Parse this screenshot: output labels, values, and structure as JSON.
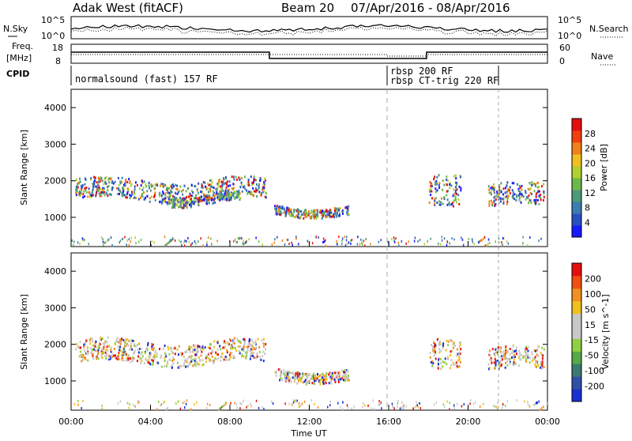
{
  "header": {
    "station": "Adak West (fitACF)",
    "beam": "Beam 20",
    "date_range": "07/Apr/2016 - 08/Apr/2016"
  },
  "top_panels": {
    "nsky_label": "N.Sky",
    "nsearch_label": "N.Search",
    "nsky_left_ticks": [
      "10^5",
      "10^0"
    ],
    "nsky_right_ticks": [
      "10^5",
      "10^0"
    ],
    "freq_label_line1": "Freq.",
    "freq_label_line2": "[MHz]",
    "freq_ticks": [
      "18",
      "8"
    ],
    "nave_label": "Nave",
    "nave_ticks": [
      "60",
      "0"
    ],
    "cpid_label": "CPID",
    "cpid_segments": [
      {
        "text": "normalsound (fast) 157 RF"
      },
      {
        "text": "rbsp 200 RF"
      },
      {
        "text": "rbsp CT-trig 220 RF"
      }
    ]
  },
  "chart_data": [
    {
      "type": "heatmap",
      "quantity": "power",
      "ylabel": "Slant Range [km]",
      "ylim": [
        200,
        4500
      ],
      "yticks": [
        1000,
        2000,
        3000,
        4000
      ],
      "xlim": [
        0,
        24
      ],
      "colorbar_label": "Power [dB]",
      "colorbar_ticks": [
        "4",
        "8",
        "12",
        "16",
        "20",
        "24",
        "28"
      ],
      "colorbar_colors": [
        "#1a1aff",
        "#2a4fc0",
        "#3a7db0",
        "#4c9a7a",
        "#6bb84a",
        "#b0d030",
        "#f0c020",
        "#f08018",
        "#f04010",
        "#e41010"
      ],
      "scatter_bands": [
        {
          "t_start": 0.2,
          "t_end": 9.8,
          "range_start": 1500,
          "range_end": 2050
        },
        {
          "t_start": 5.0,
          "t_end": 8.5,
          "range_start": 1400,
          "range_end": 1650
        },
        {
          "t_start": 10.2,
          "t_end": 14.0,
          "range_start": 1100,
          "range_end": 1350
        },
        {
          "t_start": 18.0,
          "t_end": 19.6,
          "range_start": 1450,
          "range_end": 2300
        },
        {
          "t_start": 21.0,
          "t_end": 23.8,
          "range_start": 1300,
          "range_end": 1900
        }
      ]
    },
    {
      "type": "heatmap",
      "quantity": "velocity",
      "ylabel": "Slant Range [km]",
      "xlabel": "Time UT",
      "ylim": [
        200,
        4500
      ],
      "yticks": [
        1000,
        2000,
        3000,
        4000
      ],
      "xlim": [
        0,
        24
      ],
      "xticks": [
        "00:00",
        "04:00",
        "08:00",
        "12:00",
        "16:00",
        "20:00",
        "00:00"
      ],
      "colorbar_label": "Velocity [m s^-1]",
      "colorbar_ticks": [
        "200",
        "100",
        "50",
        "15",
        "-15",
        "-50",
        "-100",
        "-200"
      ],
      "colorbar_colors": [
        "#1a30d0",
        "#3050a8",
        "#3a7a70",
        "#58a848",
        "#90d040",
        "#c8c8c8",
        "#c8c8c8",
        "#f0c020",
        "#f09020",
        "#f05010",
        "#e41010"
      ],
      "scatter_bands": [
        {
          "t_start": 0.2,
          "t_end": 9.8,
          "range_start": 1500,
          "range_end": 2100
        },
        {
          "t_start": 10.2,
          "t_end": 14.0,
          "range_start": 1050,
          "range_end": 1350
        },
        {
          "t_start": 18.0,
          "t_end": 19.6,
          "range_start": 1450,
          "range_end": 2300
        },
        {
          "t_start": 21.0,
          "t_end": 23.8,
          "range_start": 1300,
          "range_end": 1900
        }
      ]
    }
  ]
}
